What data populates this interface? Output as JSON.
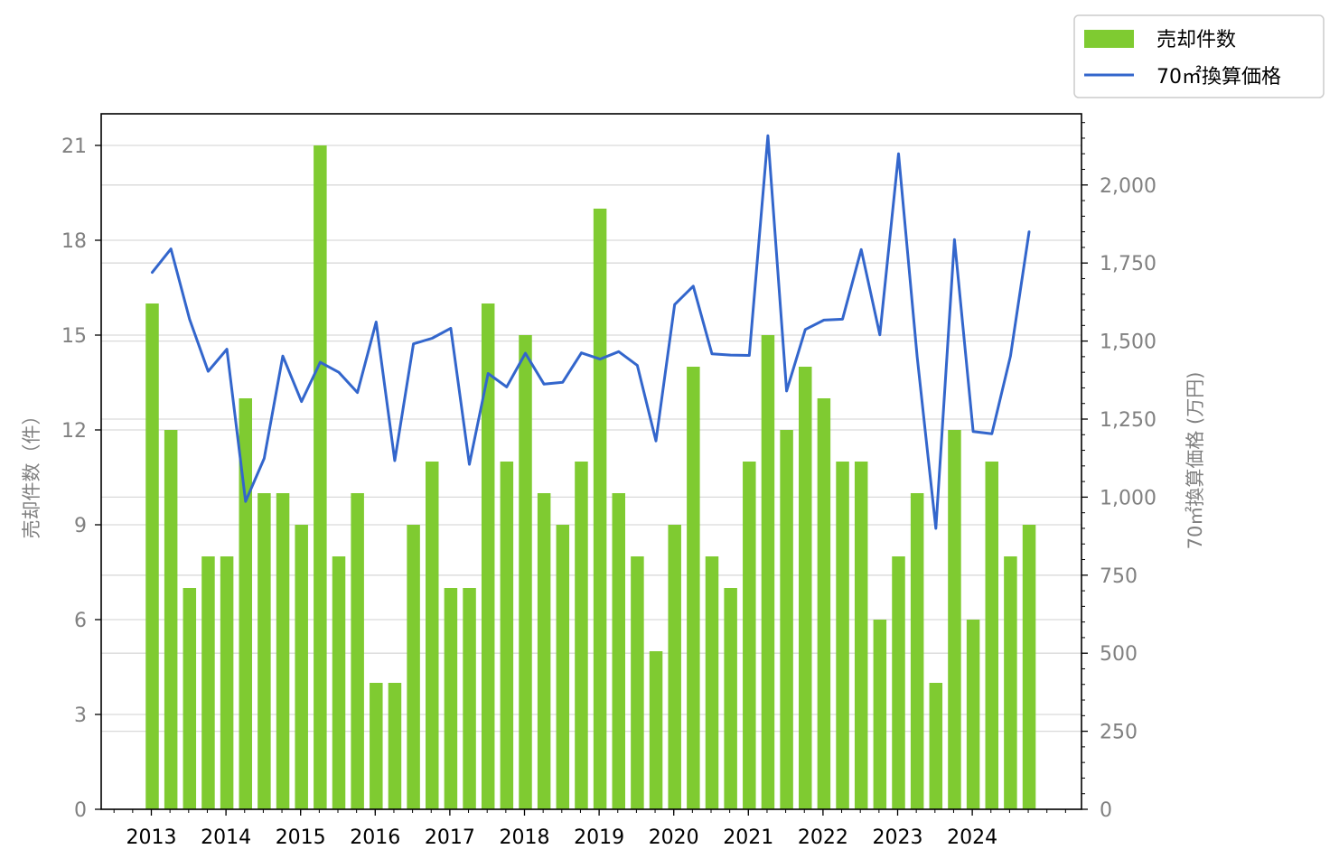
{
  "chart_data": {
    "type": "bar",
    "legend_placement": "top-right",
    "grid": true,
    "xlabel": "",
    "ylabel": "売却件数（件）",
    "ylabel_right": "70㎡換算価格 (万円)",
    "years": [
      "2013",
      "2014",
      "2015",
      "2016",
      "2017",
      "2018",
      "2019",
      "2020",
      "2021",
      "2022",
      "2023",
      "2024"
    ],
    "ylim": [
      0,
      22
    ],
    "yticks": [
      "0",
      "3",
      "6",
      "9",
      "12",
      "15",
      "18",
      "21"
    ],
    "ylim_right": [
      0,
      2228
    ],
    "yticks_right": [
      "0",
      "250",
      "500",
      "750",
      "1,000",
      "1,250",
      "1,500",
      "1,750",
      "2,000"
    ],
    "series": [
      {
        "name": "売却件数",
        "type": "bar",
        "color": "#7fcb31",
        "values": [
          16,
          12,
          7,
          8,
          8,
          13,
          10,
          10,
          9,
          21,
          8,
          10,
          4,
          4,
          9,
          11,
          7,
          7,
          16,
          11,
          15,
          10,
          9,
          11,
          19,
          10,
          8,
          5,
          9,
          14,
          8,
          7,
          11,
          15,
          12,
          14,
          13,
          11,
          11,
          6,
          8,
          10,
          4,
          12,
          6,
          11,
          8,
          9
        ]
      },
      {
        "name": "70㎡換算価格",
        "type": "line",
        "color": "#3366cc",
        "axis": "right",
        "values": [
          1720,
          1795,
          1570,
          1403,
          1474,
          986,
          1124,
          1452,
          1306,
          1432,
          1400,
          1335,
          1561,
          1117,
          1491,
          1509,
          1541,
          1105,
          1396,
          1353,
          1461,
          1362,
          1368,
          1462,
          1442,
          1466,
          1422,
          1180,
          1617,
          1676,
          1459,
          1455,
          1454,
          2158,
          1340,
          1537,
          1567,
          1570,
          1793,
          1520,
          2100,
          1450,
          900,
          1825,
          1210,
          1203,
          1452,
          1850
        ]
      }
    ]
  }
}
